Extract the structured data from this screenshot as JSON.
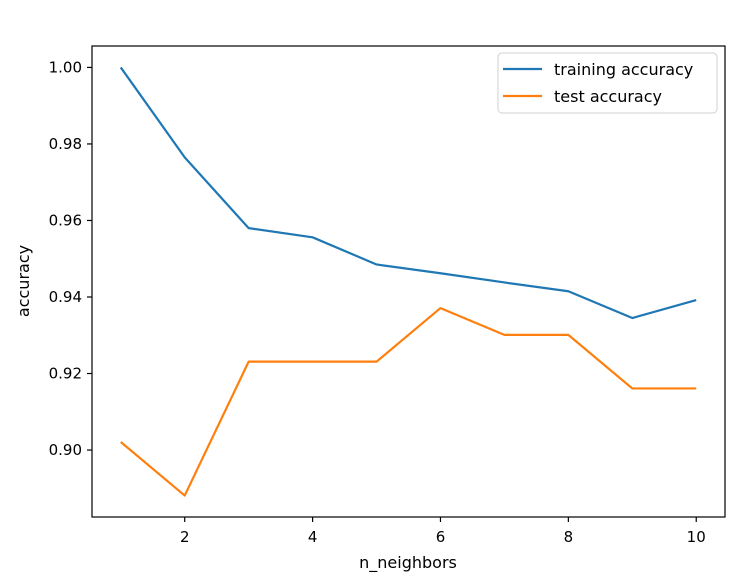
{
  "chart_data": {
    "type": "line",
    "x": [
      1,
      2,
      3,
      4,
      5,
      6,
      7,
      8,
      9,
      10
    ],
    "series": [
      {
        "name": "training accuracy",
        "color": "#1f77b4",
        "values": [
          1.0,
          0.9765,
          0.958,
          0.9556,
          0.9485,
          0.9462,
          0.9438,
          0.9415,
          0.9345,
          0.9392
        ]
      },
      {
        "name": "test accuracy",
        "color": "#ff7f0e",
        "values": [
          0.9021,
          0.8881,
          0.9231,
          0.9231,
          0.9231,
          0.9371,
          0.9301,
          0.9301,
          0.9161,
          0.9161
        ]
      }
    ],
    "xlabel": "n_neighbors",
    "ylabel": "accuracy",
    "xlim": [
      0.55,
      10.45
    ],
    "ylim": [
      0.8825,
      1.0056
    ],
    "xticks": [
      2,
      4,
      6,
      8,
      10
    ],
    "xtick_labels": [
      "2",
      "4",
      "6",
      "8",
      "10"
    ],
    "yticks": [
      0.9,
      0.92,
      0.94,
      0.96,
      0.98,
      1.0
    ],
    "ytick_labels": [
      "0.90",
      "0.92",
      "0.94",
      "0.96",
      "0.98",
      "1.00"
    ],
    "grid": false,
    "legend_position": "top-right"
  }
}
